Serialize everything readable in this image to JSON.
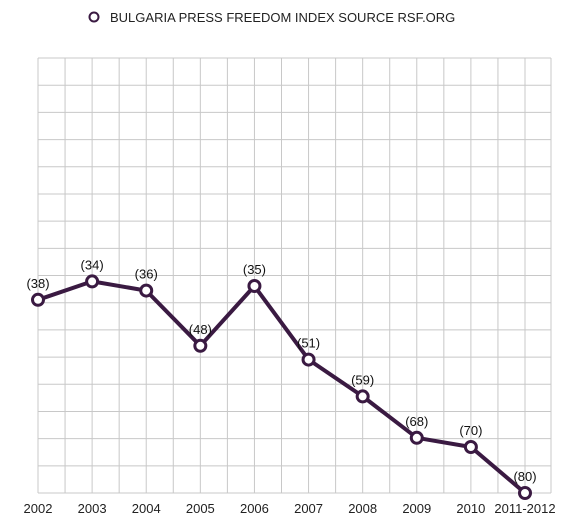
{
  "chart_data": {
    "type": "line",
    "legend": "BULGARIA PRESS FREEDOM INDEX SOURCE RSF.ORG",
    "legend_position": "top-center",
    "categories": [
      "2002",
      "2003",
      "2004",
      "2005",
      "2006",
      "2007",
      "2008",
      "2009",
      "2010",
      "2011-2012"
    ],
    "values": [
      38,
      34,
      36,
      48,
      35,
      51,
      59,
      68,
      70,
      80
    ],
    "data_labels": [
      "(38)",
      "(34)",
      "(36)",
      "(48)",
      "(35)",
      "(51)",
      "(59)",
      "(68)",
      "(70)",
      "(80)"
    ],
    "ylim": [
      0,
      80
    ],
    "y_inverted": true,
    "grid": true,
    "colors": {
      "line": "#3a1a42",
      "marker_fill": "#ffffff",
      "grid": "#c8c8c8"
    }
  }
}
